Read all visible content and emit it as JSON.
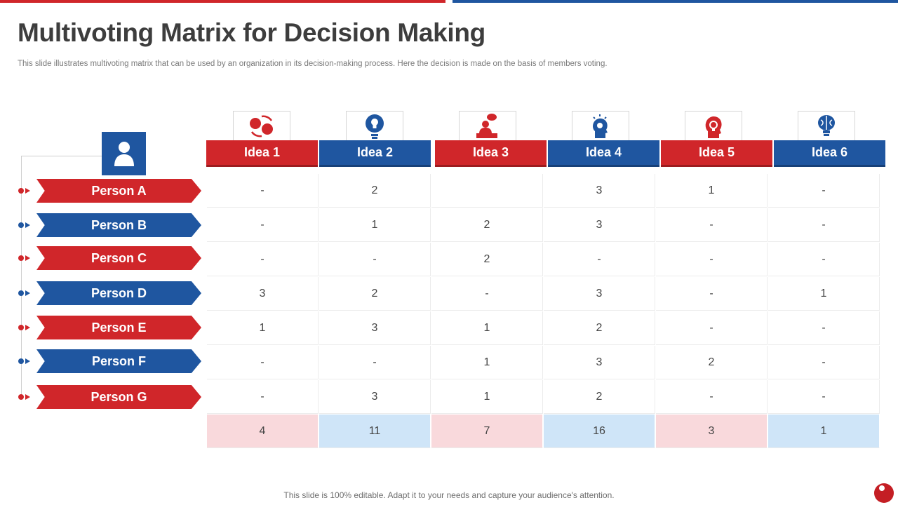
{
  "title": "Multivoting Matrix for Decision Making",
  "subtitle": "This slide illustrates multivoting matrix that can be used by an organization in its decision-making process. Here the decision is made on the basis of members voting.",
  "footer": "This slide is 100% editable. Adapt it to your needs and capture your audience's attention.",
  "colors": {
    "red": "#d0262a",
    "blue": "#1f56a0",
    "light_red": "#f9d9dc",
    "light_blue": "#cfe5f8"
  },
  "ideas": [
    {
      "label": "Idea 1",
      "icon": "rotating-heads-icon",
      "color": "red"
    },
    {
      "label": "Idea 2",
      "icon": "bulb-in-circle-icon",
      "color": "blue"
    },
    {
      "label": "Idea 3",
      "icon": "person-reading-icon",
      "color": "red"
    },
    {
      "label": "Idea 4",
      "icon": "head-with-bulb-icon",
      "color": "blue"
    },
    {
      "label": "Idea 5",
      "icon": "bulb-in-head-icon",
      "color": "red"
    },
    {
      "label": "Idea 6",
      "icon": "brain-bulb-icon",
      "color": "blue"
    }
  ],
  "persons": [
    {
      "label": "Person A",
      "color": "red"
    },
    {
      "label": "Person B",
      "color": "blue"
    },
    {
      "label": "Person C",
      "color": "red"
    },
    {
      "label": "Person D",
      "color": "blue"
    },
    {
      "label": "Person E",
      "color": "red"
    },
    {
      "label": "Person F",
      "color": "blue"
    },
    {
      "label": "Person G",
      "color": "red"
    }
  ],
  "votes": [
    [
      "-",
      "2",
      "",
      "3",
      "1",
      "-"
    ],
    [
      "-",
      "1",
      "2",
      "3",
      "-",
      "-"
    ],
    [
      "-",
      "-",
      "2",
      "-",
      "-",
      "-"
    ],
    [
      "3",
      "2",
      "-",
      "3",
      "-",
      "1"
    ],
    [
      "1",
      "3",
      "1",
      "2",
      "-",
      "-"
    ],
    [
      "-",
      "-",
      "1",
      "3",
      "2",
      "-"
    ],
    [
      "-",
      "3",
      "1",
      "2",
      "-",
      "-"
    ]
  ],
  "totals": [
    "4",
    "11",
    "7",
    "16",
    "3",
    "1"
  ]
}
